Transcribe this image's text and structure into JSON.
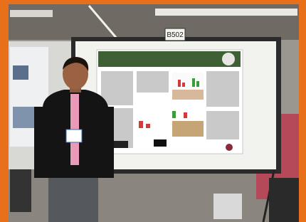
{
  "sign": {
    "label": "B502"
  }
}
